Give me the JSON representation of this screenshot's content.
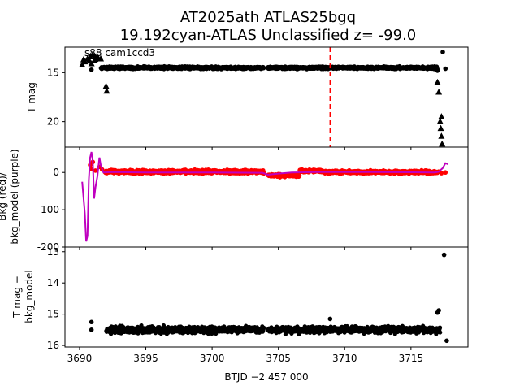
{
  "chart_data": {
    "type": "scatter",
    "title": [
      "AT2025ath  ATLAS25bgq",
      "19.192cyan-ATLAS Unclassified z= -99.0"
    ],
    "xlabel": "BTJD −2 457 000",
    "xlim": [
      3688.9,
      3719.3
    ],
    "xticks": [
      3690,
      3695,
      3700,
      3705,
      3710,
      3715
    ],
    "panels": [
      {
        "id": "tmag",
        "ylabel": [
          "T mag"
        ],
        "ylim": [
          22.6,
          12.4
        ],
        "yticks": [
          15,
          20
        ],
        "annotation": "s88 cam1ccd3",
        "vline": {
          "x": 3708.9,
          "color": "#ff0000",
          "style": "dashed"
        },
        "series": [
          {
            "kind": "band",
            "color": "#000000",
            "segments": [
              [
                3691.6,
                3703.9,
                14.5,
                0.18
              ],
              [
                3704.2,
                3717.0,
                14.5,
                0.18
              ]
            ]
          },
          {
            "kind": "triangles",
            "color": "#000000",
            "points": [
              [
                3690.2,
                14.2
              ],
              [
                3690.4,
                13.9
              ],
              [
                3690.6,
                13.6
              ],
              [
                3690.8,
                13.4
              ],
              [
                3691.0,
                13.2
              ],
              [
                3691.2,
                13.4
              ],
              [
                3691.4,
                13.5
              ],
              [
                3691.6,
                13.6
              ],
              [
                3690.3,
                13.7
              ],
              [
                3690.9,
                14.1
              ],
              [
                3691.1,
                13.8
              ],
              [
                3692.0,
                16.4
              ],
              [
                3692.05,
                16.9
              ],
              [
                3717.0,
                16.0
              ],
              [
                3717.1,
                17.0
              ],
              [
                3717.2,
                20.0
              ],
              [
                3717.25,
                20.7
              ],
              [
                3717.3,
                21.5
              ],
              [
                3717.35,
                22.3
              ],
              [
                3717.3,
                19.5
              ]
            ]
          },
          {
            "kind": "dots",
            "color": "#000000",
            "points": [
              [
                3690.7,
                13.8
              ],
              [
                3690.9,
                14.7
              ],
              [
                3691.3,
                13.7
              ],
              [
                3716.9,
                14.4
              ],
              [
                3717.0,
                14.8
              ],
              [
                3717.4,
                12.9
              ],
              [
                3717.6,
                14.6
              ]
            ]
          }
        ]
      },
      {
        "id": "bkg",
        "ylabel": [
          "Bkg (red)/",
          "bkg_model (purple)"
        ],
        "ylim": [
          -200,
          68
        ],
        "yticks": [
          0,
          -100,
          -200
        ],
        "series": [
          {
            "kind": "band",
            "color": "#ff0000",
            "segments": [
              [
                3691.9,
                3703.9,
                2,
                7
              ],
              [
                3704.2,
                3706.6,
                -8,
                6
              ],
              [
                3706.6,
                3708.4,
                4,
                6
              ],
              [
                3708.4,
                3717.1,
                1,
                6
              ]
            ]
          },
          {
            "kind": "dots",
            "color": "#ff0000",
            "points": [
              [
                3690.8,
                20
              ],
              [
                3691.0,
                28
              ],
              [
                3690.9,
                10
              ],
              [
                3691.2,
                5
              ],
              [
                3691.5,
                15
              ],
              [
                3691.7,
                8
              ],
              [
                3717.3,
                -2
              ],
              [
                3717.6,
                0
              ]
            ]
          },
          {
            "kind": "line",
            "color": "#bf00bf",
            "points": [
              [
                3690.2,
                -25
              ],
              [
                3690.4,
                -110
              ],
              [
                3690.5,
                -185
              ],
              [
                3690.6,
                -170
              ],
              [
                3690.7,
                -20
              ],
              [
                3690.8,
                40
              ],
              [
                3690.9,
                55
              ],
              [
                3691.0,
                30
              ],
              [
                3691.1,
                -70
              ],
              [
                3691.2,
                -40
              ],
              [
                3691.35,
                -10
              ],
              [
                3691.5,
                40
              ],
              [
                3691.6,
                20
              ],
              [
                3691.8,
                0
              ],
              [
                3692.5,
                1
              ],
              [
                3695.0,
                0
              ],
              [
                3700.0,
                0
              ],
              [
                3703.8,
                -1
              ],
              [
                3704.2,
                -6
              ],
              [
                3705.0,
                -3
              ],
              [
                3706.0,
                0
              ],
              [
                3708.0,
                1
              ],
              [
                3712.0,
                1
              ],
              [
                3716.8,
                0
              ],
              [
                3717.1,
                2
              ],
              [
                3717.4,
                12
              ],
              [
                3717.6,
                25
              ],
              [
                3717.8,
                22
              ]
            ]
          }
        ]
      },
      {
        "id": "diff",
        "ylabel": [
          "T mag −",
          "bkg_model"
        ],
        "ylim": [
          16.05,
          12.85
        ],
        "yticks": [
          13,
          14,
          15,
          16
        ],
        "series": [
          {
            "kind": "band",
            "color": "#000000",
            "segments": [
              [
                3692.0,
                3703.9,
                15.5,
                0.15
              ],
              [
                3704.2,
                3717.2,
                15.5,
                0.15
              ]
            ]
          },
          {
            "kind": "dots",
            "color": "#000000",
            "points": [
              [
                3690.9,
                15.25
              ],
              [
                3690.9,
                15.5
              ],
              [
                3717.0,
                14.95
              ],
              [
                3717.1,
                14.88
              ],
              [
                3717.5,
                13.1
              ],
              [
                3717.7,
                15.85
              ],
              [
                3708.9,
                15.15
              ]
            ]
          }
        ]
      }
    ]
  }
}
